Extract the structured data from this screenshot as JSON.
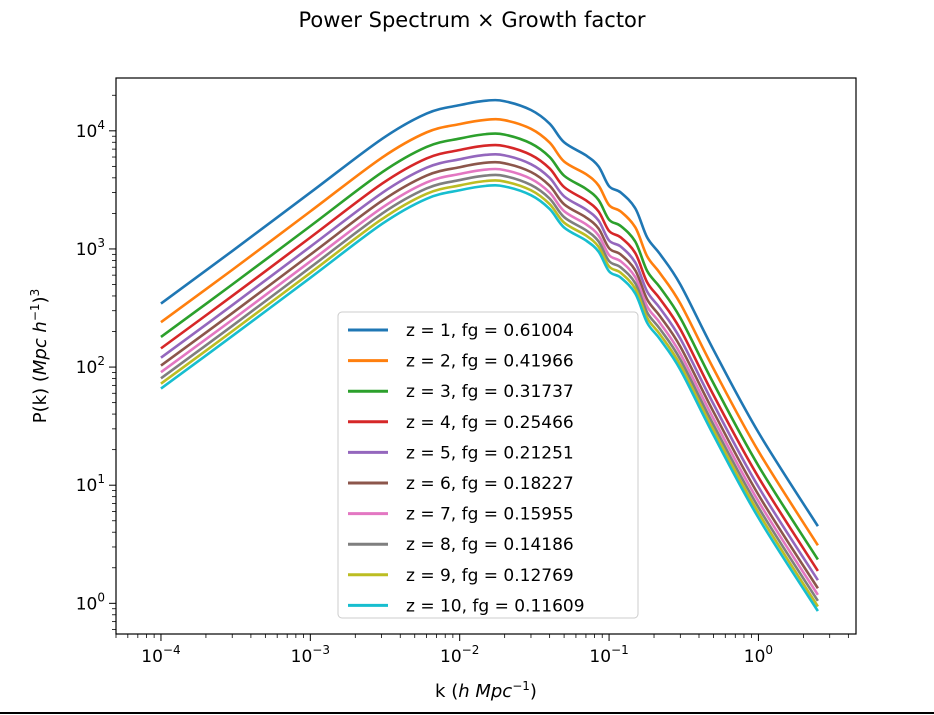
{
  "chart_data": {
    "type": "line",
    "title": "Power Spectrum × Growth factor",
    "xlabel": "k (h Mpc⁻¹)",
    "ylabel": "P(k) (Mpc h⁻¹)³",
    "xscale": "log",
    "yscale": "log",
    "xlim": [
      5e-05,
      4.5
    ],
    "ylim": [
      0.55,
      28000
    ],
    "x_ticks": [
      {
        "value": 0.0001,
        "base": "10",
        "exp": "−4"
      },
      {
        "value": 0.001,
        "base": "10",
        "exp": "−3"
      },
      {
        "value": 0.01,
        "base": "10",
        "exp": "−2"
      },
      {
        "value": 0.1,
        "base": "10",
        "exp": "−1"
      },
      {
        "value": 1,
        "base": "10",
        "exp": "0"
      }
    ],
    "y_ticks": [
      {
        "value": 1,
        "base": "10",
        "exp": "0"
      },
      {
        "value": 10,
        "base": "10",
        "exp": "1"
      },
      {
        "value": 100,
        "base": "10",
        "exp": "2"
      },
      {
        "value": 1000,
        "base": "10",
        "exp": "3"
      },
      {
        "value": 10000,
        "base": "10",
        "exp": "4"
      }
    ],
    "grid": false,
    "legend_position": "lower-center",
    "x": [
      0.0001,
      0.0003,
      0.001,
      0.003,
      0.006,
      0.01,
      0.015,
      0.02,
      0.03,
      0.04,
      0.05,
      0.07,
      0.085,
      0.1,
      0.12,
      0.15,
      0.18,
      0.22,
      0.3,
      0.5,
      1,
      2.5
    ],
    "series": [
      {
        "name": "z = 1, fg = 0.61004",
        "color": "#1f77b4",
        "values": [
          345,
          960,
          3000,
          8500,
          14000,
          16500,
          18000,
          17800,
          15000,
          11500,
          8000,
          6200,
          5000,
          3400,
          3000,
          2200,
          1250,
          900,
          500,
          140,
          28,
          4.5
        ]
      },
      {
        "name": "z = 2, fg = 0.41966",
        "color": "#ff7f0e",
        "values": [
          240,
          665,
          2080,
          5900,
          9700,
          11400,
          12400,
          12300,
          10400,
          7950,
          5500,
          4300,
          3450,
          2350,
          2070,
          1520,
          865,
          620,
          345,
          97,
          19.4,
          3.1
        ]
      },
      {
        "name": "z = 3, fg = 0.31737",
        "color": "#2ca02c",
        "values": [
          180,
          500,
          1560,
          4430,
          7300,
          8600,
          9380,
          9280,
          7820,
          6000,
          4170,
          3230,
          2600,
          1770,
          1560,
          1150,
          650,
          470,
          261,
          73,
          14.6,
          2.35
        ]
      },
      {
        "name": "z = 4, fg = 0.25466",
        "color": "#d62728",
        "values": [
          144,
          400,
          1250,
          3550,
          5840,
          6880,
          7500,
          7420,
          6250,
          4800,
          3340,
          2580,
          2080,
          1420,
          1250,
          920,
          521,
          375,
          209,
          58,
          11.7,
          1.88
        ]
      },
      {
        "name": "z = 5, fg = 0.21251",
        "color": "#9467bd",
        "values": [
          120,
          334,
          1045,
          2960,
          4870,
          5740,
          6260,
          6200,
          5220,
          4000,
          2790,
          2160,
          1740,
          1180,
          1045,
          765,
          435,
          313,
          174,
          48.7,
          9.7,
          1.57
        ]
      },
      {
        "name": "z = 6, fg = 0.18227",
        "color": "#8c564b",
        "values": [
          103,
          286,
          895,
          2540,
          4180,
          4920,
          5370,
          5310,
          4480,
          3430,
          2390,
          1850,
          1490,
          1015,
          895,
          657,
          373,
          268,
          149,
          41.8,
          8.3,
          1.34
        ]
      },
      {
        "name": "z = 7, fg = 0.15955",
        "color": "#e377c2",
        "values": [
          90.5,
          251,
          784,
          2220,
          3660,
          4310,
          4700,
          4650,
          3920,
          3000,
          2090,
          1620,
          1305,
          888,
          784,
          575,
          326,
          235,
          130,
          36.6,
          7.3,
          1.18
        ]
      },
      {
        "name": "z = 8, fg = 0.14186",
        "color": "#7f7f7f",
        "values": [
          80.4,
          223,
          697,
          1980,
          3250,
          3830,
          4180,
          4140,
          3480,
          2670,
          1860,
          1440,
          1160,
          790,
          697,
          511,
          290,
          209,
          116,
          32.5,
          6.5,
          1.05
        ]
      },
      {
        "name": "z = 9, fg = 0.12769",
        "color": "#bcbd22",
        "values": [
          72.4,
          201,
          627,
          1780,
          2930,
          3450,
          3760,
          3720,
          3140,
          2400,
          1670,
          1300,
          1045,
          711,
          627,
          460,
          261,
          188,
          104,
          29.3,
          5.85,
          0.94
        ]
      },
      {
        "name": "z = 10, fg = 0.11609",
        "color": "#17becf",
        "values": [
          65.8,
          183,
          570,
          1620,
          2660,
          3140,
          3420,
          3380,
          2850,
          2180,
          1520,
          1180,
          950,
          647,
          570,
          418,
          237,
          171,
          95,
          26.6,
          5.3,
          0.86
        ]
      }
    ]
  }
}
